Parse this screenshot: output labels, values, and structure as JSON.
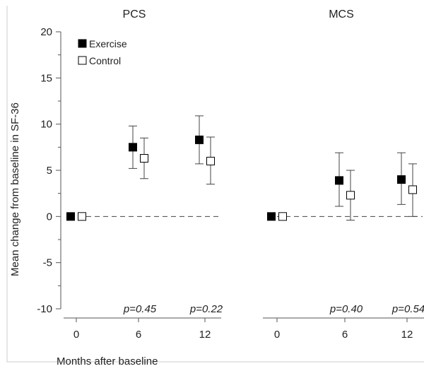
{
  "figure": {
    "ylabel": "Mean change from baseline in SF-36",
    "xlabel": "Months after baseline",
    "legend": [
      {
        "label": "Exercise",
        "fill": "#000000"
      },
      {
        "label": "Control",
        "fill": "#ffffff"
      }
    ]
  },
  "chart_data": [
    {
      "type": "scatter",
      "title": "PCS",
      "x_categories": [
        "0",
        "6",
        "12"
      ],
      "ylim": [
        -10,
        20
      ],
      "yticks": [
        "20",
        "15",
        "10",
        "5",
        "0",
        "-5",
        "-10"
      ],
      "series": [
        {
          "name": "Exercise",
          "fill": "#000000",
          "values": [
            0,
            7.5,
            8.3
          ],
          "err_low": [
            0,
            5.2,
            5.7
          ],
          "err_high": [
            0,
            9.8,
            10.9
          ]
        },
        {
          "name": "Control",
          "fill": "#ffffff",
          "values": [
            0,
            6.3,
            6.0
          ],
          "err_low": [
            0,
            4.1,
            3.5
          ],
          "err_high": [
            0,
            8.5,
            8.6
          ]
        }
      ],
      "p_values": [
        "",
        "p=0.45",
        "p=0.22"
      ]
    },
    {
      "type": "scatter",
      "title": "MCS",
      "x_categories": [
        "0",
        "6",
        "12"
      ],
      "ylim": [
        -10,
        20
      ],
      "series": [
        {
          "name": "Exercise",
          "fill": "#000000",
          "values": [
            0,
            3.9,
            4.0
          ],
          "err_low": [
            0,
            1.1,
            1.3
          ],
          "err_high": [
            0,
            6.9,
            6.9
          ]
        },
        {
          "name": "Control",
          "fill": "#ffffff",
          "values": [
            0,
            2.3,
            2.9
          ],
          "err_low": [
            0,
            -0.4,
            0.0
          ],
          "err_high": [
            0,
            5.0,
            5.7
          ]
        }
      ],
      "p_values": [
        "",
        "p=0.40",
        "p=0.54"
      ]
    }
  ]
}
